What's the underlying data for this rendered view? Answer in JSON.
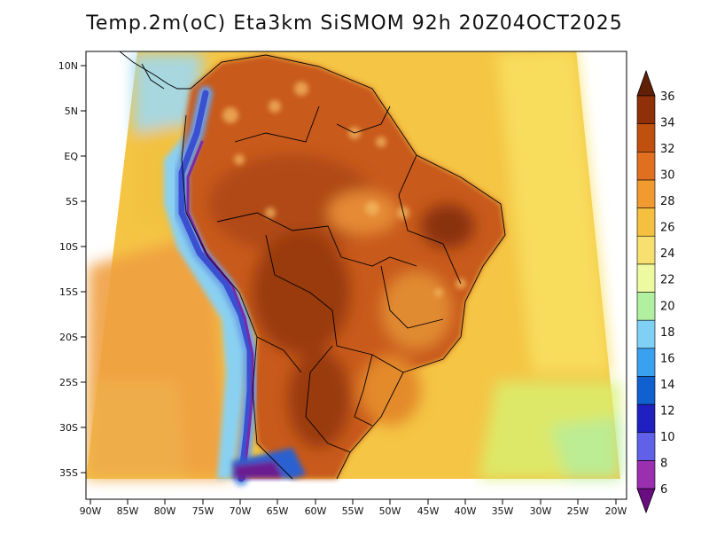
{
  "title": "Temp.2m(oC) Eta3km SiSMOM 92h 20Z04OCT2025",
  "map": {
    "lat_labels": [
      "10N",
      "5N",
      "EQ",
      "5S",
      "10S",
      "15S",
      "20S",
      "25S",
      "30S",
      "35S"
    ],
    "lon_labels": [
      "90W",
      "85W",
      "80W",
      "75W",
      "70W",
      "65W",
      "60W",
      "55W",
      "50W",
      "45W",
      "40W",
      "35W",
      "30W",
      "25W",
      "20W"
    ]
  },
  "colorbar": {
    "labels": [
      "6",
      "8",
      "10",
      "12",
      "14",
      "16",
      "18",
      "20",
      "22",
      "24",
      "26",
      "28",
      "30",
      "32",
      "34",
      "36"
    ],
    "colors": [
      "#6a0d83",
      "#9a2fb0",
      "#6060e8",
      "#2020c0",
      "#1060d0",
      "#3aa0f0",
      "#80d0f5",
      "#b0f0a0",
      "#eefaa0",
      "#f8e070",
      "#f5c040",
      "#f09a30",
      "#e07020",
      "#c05010",
      "#903008",
      "#602008"
    ]
  }
}
